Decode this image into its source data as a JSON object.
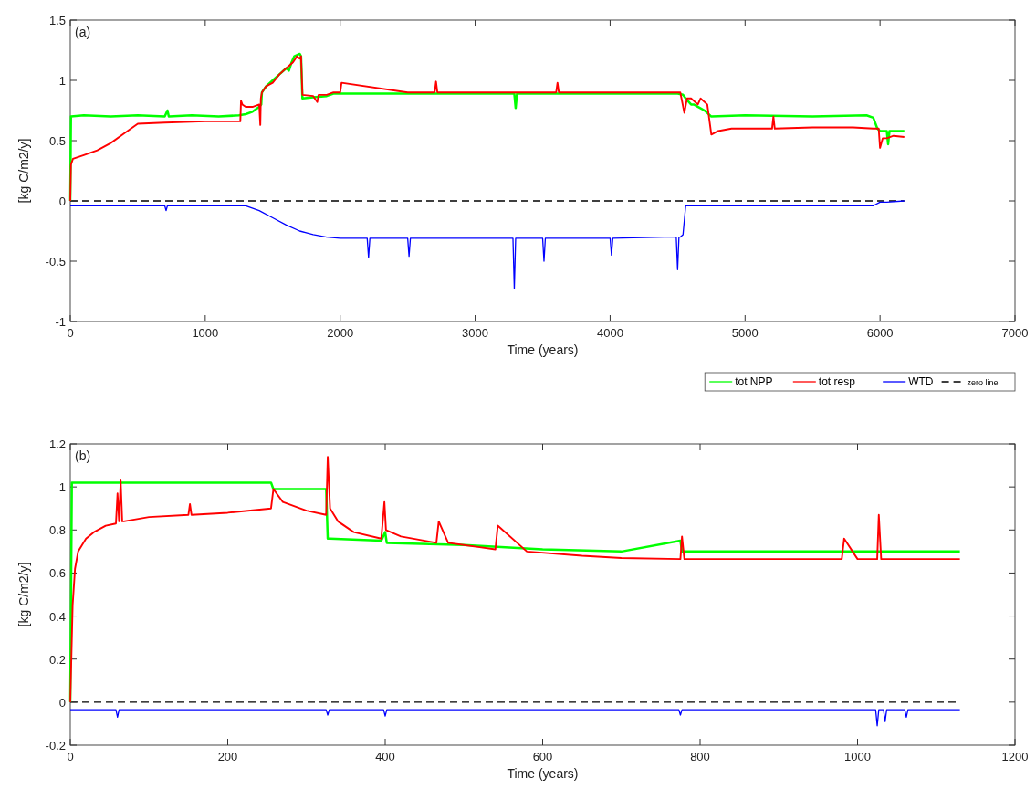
{
  "chart_data": [
    {
      "type": "line",
      "xlabel": "Time (years)",
      "ylabel": "[kg C/m2/y]",
      "annotations": [
        "(a)"
      ],
      "xlim": [
        0,
        7000
      ],
      "xticks": [
        0,
        1000,
        2000,
        3000,
        4000,
        5000,
        6000,
        7000
      ],
      "ylim": [
        -1,
        1.5
      ],
      "yticks": [
        -1,
        -0.5,
        0,
        0.5,
        1,
        1.5
      ],
      "legend": "bottom right",
      "line_style": "solid",
      "grid": false,
      "ref_lines": [
        {
          "axis": "y",
          "value": 0,
          "label": "zero line",
          "color": "#000000",
          "line_style": "dashed"
        }
      ],
      "series": [
        {
          "name": "tot NPP",
          "color": "#00ff00",
          "x": [
            0,
            5,
            100,
            300,
            500,
            700,
            720,
            730,
            900,
            1100,
            1250,
            1300,
            1350,
            1400,
            1415,
            1420,
            1450,
            1500,
            1550,
            1600,
            1620,
            1640,
            1660,
            1700,
            1710,
            1720,
            1800,
            1900,
            1950,
            2500,
            3000,
            3290,
            3300,
            3310,
            3500,
            4000,
            4500,
            4540,
            4560,
            4600,
            4620,
            4700,
            4720,
            4750,
            5000,
            5500,
            5900,
            5950,
            5980,
            6000,
            6050,
            6060,
            6070,
            6180
          ],
          "values": [
            0,
            0.7,
            0.71,
            0.7,
            0.71,
            0.7,
            0.75,
            0.7,
            0.71,
            0.7,
            0.71,
            0.72,
            0.74,
            0.78,
            0.8,
            0.9,
            0.95,
            1.0,
            1.05,
            1.1,
            1.08,
            1.15,
            1.2,
            1.22,
            1.2,
            0.85,
            0.86,
            0.87,
            0.89,
            0.89,
            0.89,
            0.89,
            0.77,
            0.89,
            0.89,
            0.89,
            0.89,
            0.88,
            0.85,
            0.8,
            0.8,
            0.75,
            0.73,
            0.7,
            0.71,
            0.7,
            0.71,
            0.69,
            0.6,
            0.58,
            0.58,
            0.47,
            0.58,
            0.58
          ]
        },
        {
          "name": "tot resp",
          "color": "#ff0000",
          "x": [
            0,
            5,
            20,
            100,
            200,
            300,
            400,
            450,
            500,
            700,
            1000,
            1260,
            1265,
            1275,
            1300,
            1350,
            1400,
            1408,
            1412,
            1420,
            1450,
            1500,
            1550,
            1600,
            1650,
            1680,
            1700,
            1710,
            1720,
            1800,
            1830,
            1840,
            1900,
            1950,
            2000,
            2010,
            2500,
            2700,
            2710,
            2720,
            3000,
            3500,
            3600,
            3610,
            3620,
            4000,
            4500,
            4520,
            4550,
            4570,
            4600,
            4650,
            4670,
            4720,
            4750,
            4800,
            4900,
            5000,
            5200,
            5210,
            5220,
            5500,
            5800,
            5950,
            5990,
            6000,
            6020,
            6050,
            6100,
            6180
          ],
          "values": [
            0,
            0.3,
            0.35,
            0.38,
            0.42,
            0.48,
            0.56,
            0.6,
            0.64,
            0.65,
            0.66,
            0.66,
            0.83,
            0.8,
            0.78,
            0.78,
            0.8,
            0.63,
            0.85,
            0.9,
            0.95,
            0.98,
            1.05,
            1.1,
            1.15,
            1.2,
            1.18,
            1.2,
            0.88,
            0.87,
            0.82,
            0.88,
            0.88,
            0.9,
            0.9,
            0.98,
            0.9,
            0.9,
            0.99,
            0.9,
            0.9,
            0.9,
            0.9,
            0.98,
            0.9,
            0.9,
            0.9,
            0.9,
            0.73,
            0.85,
            0.85,
            0.8,
            0.85,
            0.8,
            0.55,
            0.58,
            0.6,
            0.6,
            0.6,
            0.7,
            0.6,
            0.61,
            0.61,
            0.6,
            0.6,
            0.44,
            0.52,
            0.52,
            0.54,
            0.53
          ]
        },
        {
          "name": "WTD",
          "color": "#0000ff",
          "x": [
            0,
            700,
            710,
            720,
            1300,
            1400,
            1500,
            1600,
            1700,
            1800,
            1900,
            2000,
            2200,
            2210,
            2220,
            2500,
            2510,
            2520,
            3280,
            3290,
            3300,
            3310,
            3500,
            3510,
            3520,
            4000,
            4010,
            4020,
            4400,
            4490,
            4500,
            4510,
            4520,
            4540,
            4560,
            4600,
            4700,
            5000,
            5500,
            5950,
            6000,
            6050,
            6180
          ],
          "values": [
            -0.04,
            -0.04,
            -0.08,
            -0.04,
            -0.04,
            -0.08,
            -0.14,
            -0.2,
            -0.25,
            -0.28,
            -0.3,
            -0.31,
            -0.31,
            -0.47,
            -0.31,
            -0.31,
            -0.46,
            -0.31,
            -0.31,
            -0.73,
            -0.31,
            -0.31,
            -0.31,
            -0.5,
            -0.31,
            -0.31,
            -0.45,
            -0.31,
            -0.3,
            -0.3,
            -0.57,
            -0.3,
            -0.3,
            -0.28,
            -0.04,
            -0.04,
            -0.04,
            -0.04,
            -0.04,
            -0.04,
            -0.01,
            -0.01,
            0
          ]
        }
      ]
    },
    {
      "type": "line",
      "xlabel": "Time (years)",
      "ylabel": "[kg C/m2/y]",
      "annotations": [
        "(b)"
      ],
      "xlim": [
        0,
        1200
      ],
      "xticks": [
        0,
        200,
        400,
        600,
        800,
        1000,
        1200
      ],
      "ylim": [
        -0.2,
        1.2
      ],
      "yticks": [
        -0.2,
        0,
        0.2,
        0.4,
        0.6,
        0.8,
        1,
        1.2
      ],
      "line_style": "solid",
      "grid": false,
      "ref_lines": [
        {
          "axis": "y",
          "value": 0,
          "color": "#000000",
          "line_style": "dashed"
        }
      ],
      "series": [
        {
          "color": "#00ff00",
          "x": [
            0,
            2,
            255,
            258,
            325,
            327,
            330,
            395,
            400,
            402,
            500,
            600,
            700,
            775,
            777,
            800,
            900,
            1000,
            1100,
            1130
          ],
          "values": [
            0,
            1.02,
            1.02,
            0.99,
            0.99,
            0.76,
            0.76,
            0.75,
            0.79,
            0.74,
            0.73,
            0.71,
            0.7,
            0.75,
            0.7,
            0.7,
            0.7,
            0.7,
            0.7,
            0.7
          ]
        },
        {
          "color": "#ff0000",
          "x": [
            0,
            3,
            6,
            10,
            20,
            30,
            45,
            58,
            60,
            62,
            64,
            66,
            68,
            100,
            150,
            152,
            154,
            200,
            255,
            258,
            270,
            300,
            325,
            327,
            330,
            340,
            360,
            395,
            399,
            401,
            420,
            465,
            468,
            480,
            520,
            540,
            543,
            580,
            650,
            700,
            775,
            777,
            780,
            900,
            980,
            983,
            1000,
            1025,
            1027,
            1030,
            1100,
            1130
          ],
          "values": [
            0,
            0.45,
            0.62,
            0.7,
            0.76,
            0.79,
            0.82,
            0.83,
            0.97,
            0.84,
            1.03,
            0.84,
            0.84,
            0.86,
            0.87,
            0.92,
            0.87,
            0.88,
            0.9,
            0.99,
            0.93,
            0.89,
            0.87,
            1.14,
            0.9,
            0.84,
            0.79,
            0.76,
            0.93,
            0.8,
            0.77,
            0.74,
            0.84,
            0.74,
            0.72,
            0.71,
            0.82,
            0.7,
            0.68,
            0.67,
            0.665,
            0.77,
            0.665,
            0.665,
            0.665,
            0.76,
            0.665,
            0.665,
            0.87,
            0.665,
            0.665,
            0.665
          ]
        },
        {
          "color": "#0000ff",
          "x": [
            0,
            58,
            60,
            62,
            200,
            325,
            327,
            329,
            398,
            400,
            402,
            600,
            773,
            775,
            777,
            1000,
            1023,
            1025,
            1027,
            1033,
            1035,
            1037,
            1060,
            1062,
            1064,
            1130
          ],
          "values": [
            -0.035,
            -0.035,
            -0.07,
            -0.035,
            -0.035,
            -0.035,
            -0.06,
            -0.035,
            -0.035,
            -0.065,
            -0.035,
            -0.035,
            -0.035,
            -0.06,
            -0.035,
            -0.035,
            -0.035,
            -0.11,
            -0.035,
            -0.035,
            -0.09,
            -0.035,
            -0.035,
            -0.07,
            -0.035,
            -0.035
          ]
        }
      ]
    }
  ]
}
